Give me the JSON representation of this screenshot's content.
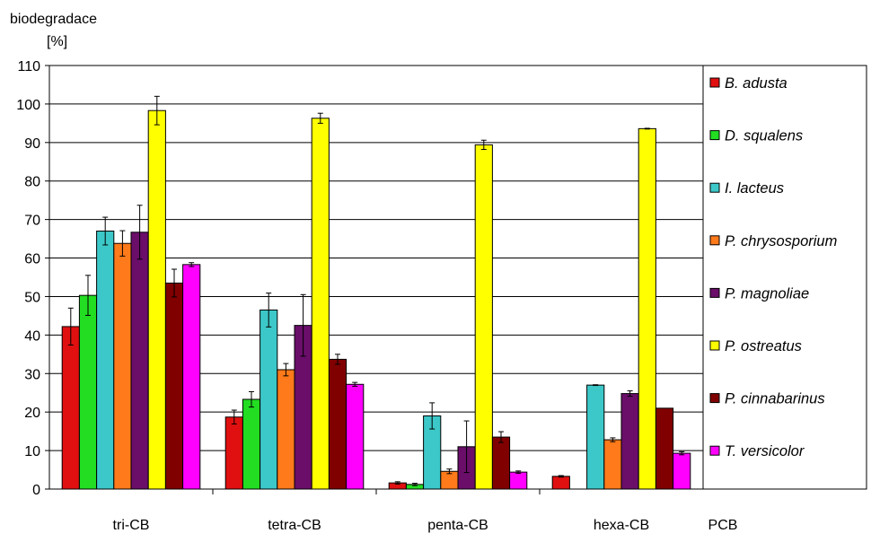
{
  "chart_data": {
    "type": "bar",
    "ylabel": "biodegradace",
    "ylabel_unit": "[%]",
    "xlabel": "PCB",
    "ylim": [
      0,
      110
    ],
    "yticks": [
      "0",
      "10",
      "20",
      "30",
      "40",
      "50",
      "60",
      "70",
      "80",
      "90",
      "100",
      "110"
    ],
    "grid": true,
    "legend_position": "right",
    "categories": [
      "tri-CB",
      "tetra-CB",
      "penta-CB",
      "hexa-CB"
    ],
    "series": [
      {
        "name": "B. adusta",
        "color": "#e01010",
        "values": [
          42.2,
          18.7,
          1.6,
          3.3
        ],
        "errors": [
          4.8,
          1.8,
          0.3,
          0.2
        ]
      },
      {
        "name": "D. squalens",
        "color": "#22dd22",
        "values": [
          50.3,
          23.3,
          1.2,
          null
        ],
        "errors": [
          5.2,
          2.0,
          0.3,
          null
        ]
      },
      {
        "name": "I. lacteus",
        "color": "#3cc8c8",
        "values": [
          67.0,
          46.5,
          19.0,
          27.0
        ],
        "errors": [
          3.6,
          4.4,
          3.4,
          0.1
        ]
      },
      {
        "name": "P. chrysosporium",
        "color": "#ff7a1a",
        "values": [
          63.8,
          31.0,
          4.6,
          12.8
        ],
        "errors": [
          3.3,
          1.6,
          0.6,
          0.5
        ]
      },
      {
        "name": "P. magnoliae",
        "color": "#6a0e6a",
        "values": [
          66.7,
          42.5,
          11.0,
          24.8
        ],
        "errors": [
          7.0,
          8.0,
          6.7,
          0.7
        ]
      },
      {
        "name": "P. ostreatus",
        "color": "#ffff00",
        "values": [
          98.3,
          96.3,
          89.4,
          93.6
        ],
        "errors": [
          3.7,
          1.3,
          1.2,
          0.1
        ]
      },
      {
        "name": "P. cinnabarinus",
        "color": "#800000",
        "values": [
          53.5,
          33.7,
          13.5,
          21.0
        ],
        "errors": [
          3.6,
          1.3,
          1.4,
          0.0
        ]
      },
      {
        "name": "T. versicolor",
        "color": "#ff00ff",
        "values": [
          58.3,
          27.2,
          4.4,
          9.3
        ],
        "errors": [
          0.5,
          0.5,
          0.3,
          0.4
        ]
      }
    ]
  }
}
